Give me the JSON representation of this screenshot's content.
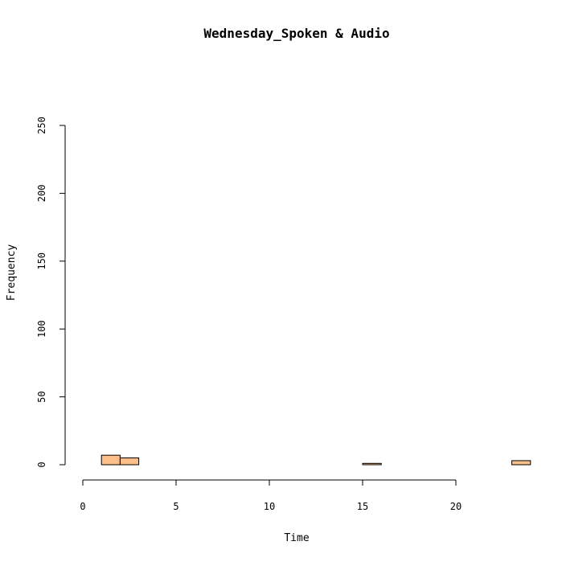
{
  "chart_data": {
    "type": "bar",
    "title": "Wednesday_Spoken & Audio",
    "xlabel": "Time",
    "ylabel": "Frequency",
    "xlim": [
      0,
      24
    ],
    "ylim": [
      0,
      250
    ],
    "x_ticks": [
      0,
      5,
      10,
      15,
      20
    ],
    "y_ticks": [
      0,
      50,
      100,
      150,
      200,
      250
    ],
    "bin_width": 1,
    "bins": [
      {
        "start": 0,
        "end": 1,
        "count": 0
      },
      {
        "start": 1,
        "end": 2,
        "count": 7
      },
      {
        "start": 2,
        "end": 3,
        "count": 5
      },
      {
        "start": 3,
        "end": 4,
        "count": 0
      },
      {
        "start": 4,
        "end": 5,
        "count": 0
      },
      {
        "start": 5,
        "end": 6,
        "count": 0
      },
      {
        "start": 6,
        "end": 7,
        "count": 0
      },
      {
        "start": 7,
        "end": 8,
        "count": 0
      },
      {
        "start": 8,
        "end": 9,
        "count": 0
      },
      {
        "start": 9,
        "end": 10,
        "count": 0
      },
      {
        "start": 10,
        "end": 11,
        "count": 0
      },
      {
        "start": 11,
        "end": 12,
        "count": 0
      },
      {
        "start": 12,
        "end": 13,
        "count": 0
      },
      {
        "start": 13,
        "end": 14,
        "count": 0
      },
      {
        "start": 14,
        "end": 15,
        "count": 0
      },
      {
        "start": 15,
        "end": 16,
        "count": 1
      },
      {
        "start": 16,
        "end": 17,
        "count": 0
      },
      {
        "start": 17,
        "end": 18,
        "count": 0
      },
      {
        "start": 18,
        "end": 19,
        "count": 0
      },
      {
        "start": 19,
        "end": 20,
        "count": 0
      },
      {
        "start": 20,
        "end": 21,
        "count": 0
      },
      {
        "start": 21,
        "end": 22,
        "count": 0
      },
      {
        "start": 22,
        "end": 23,
        "count": 0
      },
      {
        "start": 23,
        "end": 24,
        "count": 3
      }
    ],
    "bar_color": "#FDBF8A",
    "grid": false,
    "legend": "none"
  }
}
